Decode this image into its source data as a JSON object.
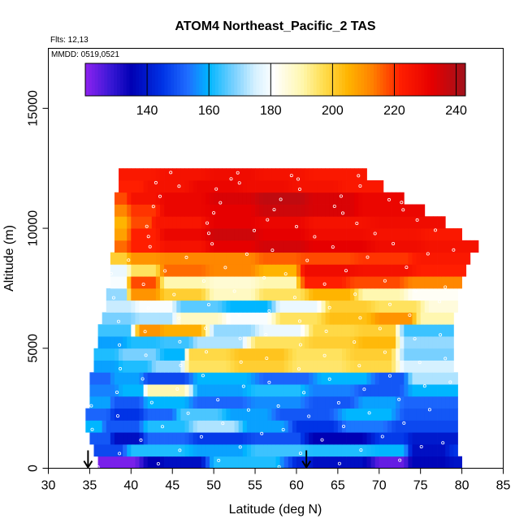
{
  "chart_data": {
    "type": "heatmap",
    "title": "ATOM4 Northeast_Pacific_2 TAS",
    "subtitle_flights": "Flts: 12,13",
    "subtitle_dates": "MMDD: 0519,0521",
    "xlabel": "Latitude (deg N)",
    "ylabel": "Altitude (m)",
    "xlim": [
      30,
      85
    ],
    "ylim": [
      0,
      17500
    ],
    "x_ticks": [
      30,
      35,
      40,
      45,
      50,
      55,
      60,
      65,
      70,
      75,
      80,
      85
    ],
    "y_ticks": [
      0,
      5000,
      10000,
      15000
    ],
    "colorbar": {
      "range": [
        120,
        243
      ],
      "ticks": [
        140,
        160,
        180,
        200,
        220,
        240
      ],
      "stops": [
        {
          "v": 120,
          "c": "#8e22f0"
        },
        {
          "v": 128,
          "c": "#3b18d6"
        },
        {
          "v": 135,
          "c": "#0000b4"
        },
        {
          "v": 145,
          "c": "#0033e6"
        },
        {
          "v": 153,
          "c": "#1f6cff"
        },
        {
          "v": 160,
          "c": "#00b6ff"
        },
        {
          "v": 168,
          "c": "#78d0ff"
        },
        {
          "v": 175,
          "c": "#d6f1ff"
        },
        {
          "v": 181,
          "c": "#ffffff"
        },
        {
          "v": 190,
          "c": "#fff7b0"
        },
        {
          "v": 197,
          "c": "#ffde50"
        },
        {
          "v": 205,
          "c": "#ffb400"
        },
        {
          "v": 213,
          "c": "#ff8000"
        },
        {
          "v": 222,
          "c": "#ff1e00"
        },
        {
          "v": 232,
          "c": "#e60000"
        },
        {
          "v": 243,
          "c": "#a0121c"
        }
      ]
    },
    "bins": {
      "lat_step": 0.5,
      "alt_step": 500,
      "rows": [
        {
          "alt": 250,
          "lat_start": 36,
          "lat_end": 80,
          "segments": [
            [
              36,
              122
            ],
            [
              42,
              135
            ],
            [
              44,
              138
            ],
            [
              50,
              162
            ],
            [
              60,
              142
            ],
            [
              62,
              138
            ],
            [
              70,
              124
            ],
            [
              74,
              136
            ],
            [
              79,
              139
            ]
          ]
        },
        {
          "alt": 750,
          "lat_start": 35.5,
          "lat_end": 79.5,
          "segments": [
            [
              35.5,
              148
            ],
            [
              40,
              162
            ],
            [
              48,
              158
            ],
            [
              55,
              164
            ],
            [
              62,
              162
            ],
            [
              70,
              160
            ],
            [
              74,
              138
            ],
            [
              79,
              145
            ]
          ]
        },
        {
          "alt": 1250,
          "lat_start": 35,
          "lat_end": 79.5,
          "segments": [
            [
              35,
              150
            ],
            [
              38,
              138
            ],
            [
              42,
              152
            ],
            [
              48,
              146
            ],
            [
              55,
              149
            ],
            [
              62,
              135
            ],
            [
              70,
              146
            ],
            [
              74,
              140
            ]
          ]
        },
        {
          "alt": 1750,
          "lat_start": 34.5,
          "lat_end": 79.5,
          "segments": [
            [
              34.5,
              160
            ],
            [
              37,
              150
            ],
            [
              42,
              162
            ],
            [
              48,
              172
            ],
            [
              54,
              158
            ],
            [
              60,
              145
            ],
            [
              66,
              154
            ],
            [
              72,
              148
            ]
          ]
        },
        {
          "alt": 2250,
          "lat_start": 34.5,
          "lat_end": 79.5,
          "segments": [
            [
              34.5,
              152
            ],
            [
              38,
              145
            ],
            [
              42,
              152
            ],
            [
              46,
              165
            ],
            [
              52,
              158
            ],
            [
              58,
              150
            ],
            [
              66,
              160
            ],
            [
              73,
              150
            ]
          ]
        },
        {
          "alt": 2750,
          "lat_start": 35,
          "lat_end": 79.5,
          "segments": [
            [
              35,
              158
            ],
            [
              38,
              150
            ],
            [
              42,
              160
            ],
            [
              48,
              152
            ],
            [
              55,
              156
            ],
            [
              62,
              150
            ],
            [
              68,
              158
            ],
            [
              73,
              152
            ]
          ]
        },
        {
          "alt": 3250,
          "lat_start": 35,
          "lat_end": 79.5,
          "segments": [
            [
              35,
              155
            ],
            [
              39,
              160
            ],
            [
              42,
              190
            ],
            [
              48,
              158
            ],
            [
              55,
              162
            ],
            [
              62,
              155
            ],
            [
              68,
              150
            ],
            [
              74,
              160
            ]
          ]
        },
        {
          "alt": 3750,
          "lat_start": 35,
          "lat_end": 79.5,
          "segments": [
            [
              35,
              152
            ],
            [
              38,
              158
            ],
            [
              42,
              148
            ],
            [
              48,
              160
            ],
            [
              56,
              152
            ],
            [
              63,
              160
            ],
            [
              70,
              150
            ],
            [
              74,
              172
            ]
          ]
        },
        {
          "alt": 4250,
          "lat_start": 35.5,
          "lat_end": 79,
          "segments": [
            [
              35.5,
              158
            ],
            [
              39,
              162
            ],
            [
              43,
              170
            ],
            [
              47,
              196
            ],
            [
              53,
              200
            ],
            [
              60,
              195
            ],
            [
              67,
              198
            ],
            [
              73,
              175
            ]
          ]
        },
        {
          "alt": 4750,
          "lat_start": 35.5,
          "lat_end": 79,
          "segments": [
            [
              35.5,
              162
            ],
            [
              39,
              168
            ],
            [
              44,
              160
            ],
            [
              47,
              198
            ],
            [
              53,
              202
            ],
            [
              60,
              196
            ],
            [
              67,
              200
            ],
            [
              73,
              168
            ]
          ]
        },
        {
          "alt": 5250,
          "lat_start": 36,
          "lat_end": 79,
          "segments": [
            [
              36,
              158
            ],
            [
              40,
              162
            ],
            [
              44,
              164
            ],
            [
              48,
              172
            ],
            [
              55,
              196
            ],
            [
              62,
              200
            ],
            [
              68,
              204
            ],
            [
              73,
              170
            ]
          ]
        },
        {
          "alt": 5750,
          "lat_start": 36,
          "lat_end": 79,
          "segments": [
            [
              36,
              164
            ],
            [
              41,
              210
            ],
            [
              44,
              206
            ],
            [
              50,
              170
            ],
            [
              56,
              178
            ],
            [
              62,
              198
            ],
            [
              68,
              200
            ],
            [
              73,
              164
            ]
          ]
        },
        {
          "alt": 6250,
          "lat_start": 36.5,
          "lat_end": 79,
          "segments": [
            [
              36.5,
              168
            ],
            [
              41,
              172
            ],
            [
              46,
              188
            ],
            [
              52,
              180
            ],
            [
              58,
              196
            ],
            [
              64,
              203
            ],
            [
              70,
              210
            ],
            [
              75,
              190
            ]
          ]
        },
        {
          "alt": 6750,
          "lat_start": 37,
          "lat_end": 79.5,
          "segments": [
            [
              37,
              174
            ],
            [
              41,
              180
            ],
            [
              46,
              166
            ],
            [
              52,
              160
            ],
            [
              58,
              178
            ],
            [
              64,
              200
            ],
            [
              70,
              196
            ],
            [
              76,
              185
            ]
          ]
        },
        {
          "alt": 7250,
          "lat_start": 37,
          "lat_end": 79.5,
          "segments": [
            [
              37,
              170
            ],
            [
              40,
              210
            ],
            [
              44,
              200
            ],
            [
              50,
              188
            ],
            [
              56,
              196
            ],
            [
              62,
              205
            ],
            [
              68,
              190
            ],
            [
              74,
              182
            ]
          ]
        },
        {
          "alt": 7750,
          "lat_start": 37.5,
          "lat_end": 80,
          "segments": [
            [
              37.5,
              180
            ],
            [
              40,
              218
            ],
            [
              44,
              190
            ],
            [
              50,
              186
            ],
            [
              56,
              190
            ],
            [
              61,
              222
            ],
            [
              67,
              218
            ],
            [
              74,
              212
            ]
          ]
        },
        {
          "alt": 8250,
          "lat_start": 37.5,
          "lat_end": 80.5,
          "segments": [
            [
              37.5,
              178
            ],
            [
              40,
              196
            ],
            [
              44,
              215
            ],
            [
              50,
              212
            ],
            [
              56,
              205
            ],
            [
              61,
              228
            ],
            [
              68,
              226
            ],
            [
              75,
              222
            ]
          ]
        },
        {
          "alt": 8750,
          "lat_start": 37.5,
          "lat_end": 81,
          "segments": [
            [
              37.5,
              200
            ],
            [
              40,
              210
            ],
            [
              44,
              212
            ],
            [
              50,
              212
            ],
            [
              56,
              216
            ],
            [
              61,
              218
            ],
            [
              68,
              220
            ],
            [
              75,
              224
            ]
          ]
        },
        {
          "alt": 9250,
          "lat_start": 38,
          "lat_end": 82,
          "segments": [
            [
              38,
              215
            ],
            [
              40,
              222
            ],
            [
              44,
              226
            ],
            [
              50,
              232
            ],
            [
              56,
              235
            ],
            [
              62,
              232
            ],
            [
              70,
              228
            ],
            [
              76,
              226
            ]
          ]
        },
        {
          "alt": 9750,
          "lat_start": 38,
          "lat_end": 80,
          "segments": [
            [
              38,
              208
            ],
            [
              40,
              222
            ],
            [
              44,
              230
            ],
            [
              50,
              236
            ],
            [
              56,
              232
            ],
            [
              62,
              228
            ],
            [
              70,
              226
            ],
            [
              76,
              224
            ]
          ]
        },
        {
          "alt": 10250,
          "lat_start": 38,
          "lat_end": 78,
          "segments": [
            [
              38,
              205
            ],
            [
              40,
              218
            ],
            [
              43,
              225
            ],
            [
              50,
              232
            ],
            [
              56,
              230
            ],
            [
              62,
              226
            ],
            [
              70,
              228
            ]
          ]
        },
        {
          "alt": 10750,
          "lat_start": 38,
          "lat_end": 75.5,
          "segments": [
            [
              38,
              212
            ],
            [
              40,
              220
            ],
            [
              44,
              230
            ],
            [
              50,
              232
            ],
            [
              56,
              236
            ],
            [
              62,
              234
            ],
            [
              68,
              230
            ]
          ]
        },
        {
          "alt": 11250,
          "lat_start": 38,
          "lat_end": 73,
          "segments": [
            [
              38,
              218
            ],
            [
              40,
              226
            ],
            [
              44,
              230
            ],
            [
              50,
              234
            ],
            [
              56,
              238
            ],
            [
              62,
              234
            ],
            [
              68,
              230
            ]
          ]
        },
        {
          "alt": 11750,
          "lat_start": 38.5,
          "lat_end": 70.5,
          "segments": [
            [
              38.5,
              222
            ],
            [
              42,
              226
            ],
            [
              48,
              230
            ],
            [
              54,
              228
            ],
            [
              60,
              226
            ],
            [
              66,
              224
            ]
          ]
        },
        {
          "alt": 12250,
          "lat_start": 38.5,
          "lat_end": 68.5,
          "segments": [
            [
              38.5,
              224
            ],
            [
              44,
              226
            ],
            [
              50,
              228
            ],
            [
              56,
              226
            ],
            [
              62,
              224
            ]
          ]
        }
      ]
    },
    "arrows_lat": [
      34.8,
      61.2
    ]
  }
}
